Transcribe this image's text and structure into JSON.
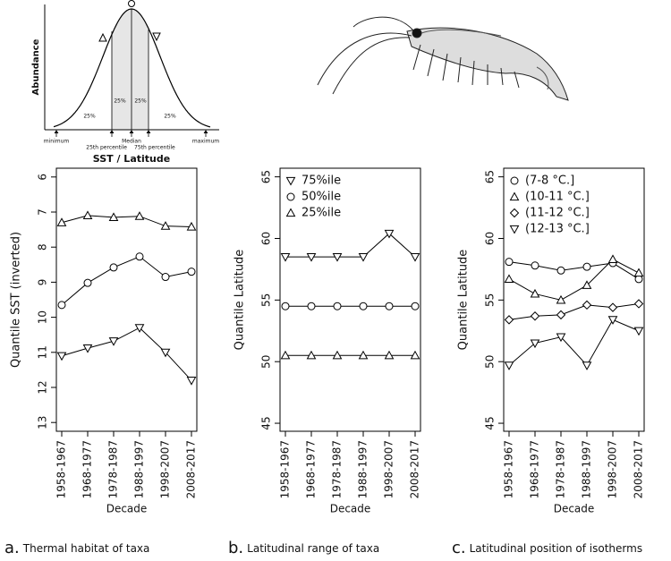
{
  "schematic": {
    "y_label": "Abundance",
    "x_label": "SST / Latitude",
    "percent_labels": [
      "25%",
      "25%",
      "25%",
      "25%"
    ],
    "x_marks": [
      "minimum",
      "Median",
      "maximum"
    ],
    "percentile_labels": [
      "25th percentile",
      "75th percentile"
    ]
  },
  "chart_data": [
    {
      "type": "line",
      "caption_letter": "a.",
      "caption": "Thermal habitat of taxa",
      "ylabel": "Quantile SST (inverted)",
      "xlabel": "Decade",
      "categories": [
        "1958-1967",
        "1968-1977",
        "1978-1987",
        "1988-1997",
        "1998-2007",
        "2008-2017"
      ],
      "ylim": [
        13.25,
        5.75
      ],
      "yticks": [
        6,
        7,
        8,
        9,
        10,
        11,
        12,
        13
      ],
      "series": [
        {
          "marker": "triangle-up",
          "color": "#000000",
          "values": [
            7.3,
            7.1,
            7.15,
            7.12,
            7.4,
            7.42
          ]
        },
        {
          "marker": "circle",
          "color": "#000000",
          "values": [
            9.65,
            9.02,
            8.58,
            8.27,
            8.85,
            8.7
          ]
        },
        {
          "marker": "triangle-down",
          "color": "#000000",
          "values": [
            11.1,
            10.88,
            10.68,
            10.3,
            11.0,
            11.8
          ]
        }
      ]
    },
    {
      "type": "line",
      "caption_letter": "b.",
      "caption": "Latitudinal range of taxa",
      "ylabel": "Quantile Latitude",
      "xlabel": "Decade",
      "categories": [
        "1958-1967",
        "1968-1977",
        "1978-1987",
        "1988-1997",
        "1998-2007",
        "2008-2017"
      ],
      "ylim": [
        44.35,
        65.7
      ],
      "yticks": [
        45,
        50,
        55,
        60,
        65
      ],
      "legend": "upper left",
      "series": [
        {
          "name": "75%ile",
          "marker": "triangle-down",
          "color": "#000000",
          "values": [
            58.5,
            58.5,
            58.5,
            58.5,
            60.4,
            58.5
          ]
        },
        {
          "name": "50%ile",
          "marker": "circle",
          "color": "#000000",
          "values": [
            54.5,
            54.5,
            54.5,
            54.5,
            54.5,
            54.5
          ]
        },
        {
          "name": "25%ile",
          "marker": "triangle-up",
          "color": "#000000",
          "values": [
            50.5,
            50.5,
            50.5,
            50.5,
            50.5,
            50.5
          ]
        }
      ]
    },
    {
      "type": "line",
      "caption_letter": "c.",
      "caption": "Latitudinal position of isotherms",
      "ylabel": "Quantile Latitude",
      "xlabel": "Decade",
      "categories": [
        "1958-1967",
        "1968-1977",
        "1978-1987",
        "1988-1997",
        "1998-2007",
        "2008-2017"
      ],
      "ylim": [
        44.35,
        65.7
      ],
      "yticks": [
        45,
        50,
        55,
        60,
        65
      ],
      "legend": "upper left",
      "series": [
        {
          "name": "(7-8 °C.]",
          "marker": "circle",
          "color": "#000000",
          "values": [
            58.1,
            57.8,
            57.4,
            57.7,
            58.0,
            56.7
          ]
        },
        {
          "name": "(10-11 °C.]",
          "marker": "triangle-up",
          "color": "#000000",
          "values": [
            56.7,
            55.5,
            55.0,
            56.2,
            58.3,
            57.2
          ]
        },
        {
          "name": "(11-12 °C.]",
          "marker": "diamond",
          "color": "#000000",
          "values": [
            53.4,
            53.7,
            53.8,
            54.6,
            54.4,
            54.7
          ]
        },
        {
          "name": "(12-13 °C.]",
          "marker": "triangle-down",
          "color": "#000000",
          "values": [
            49.7,
            51.5,
            52.0,
            49.7,
            53.4,
            52.5
          ]
        }
      ]
    }
  ]
}
